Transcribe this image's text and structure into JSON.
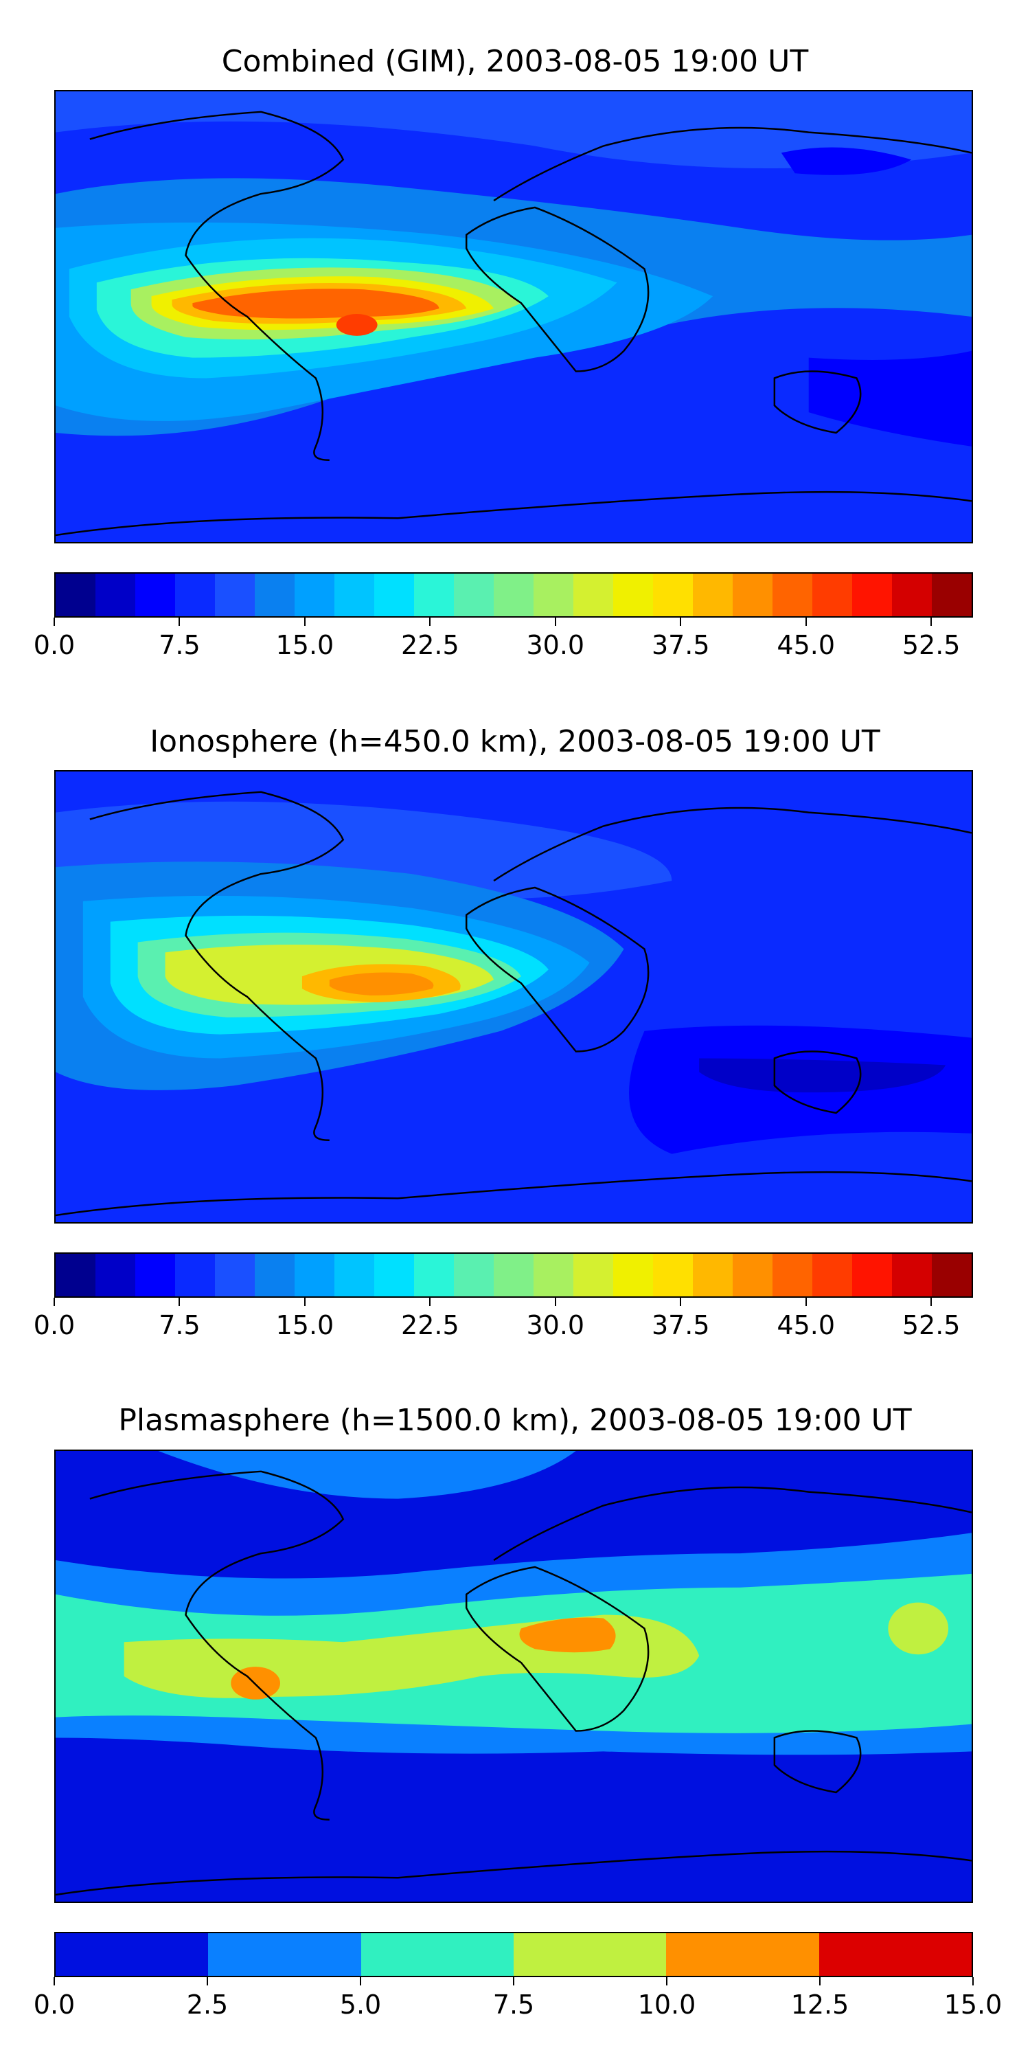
{
  "panels": [
    {
      "title": "Combined (GIM), 2003-08-05 19:00 UT",
      "colorbar": {
        "tick_labels": [
          "0.0",
          "7.5",
          "15.0",
          "22.5",
          "30.0",
          "37.5",
          "45.0",
          "52.5"
        ],
        "tick_values": [
          0,
          7.5,
          15,
          22.5,
          30,
          37.5,
          45,
          52.5
        ],
        "range": [
          0,
          55
        ],
        "levels": [
          "#00008f",
          "#0000c8",
          "#0000ff",
          "#0a2aff",
          "#1a50ff",
          "#0a80f0",
          "#00a0ff",
          "#00c4ff",
          "#00e0ff",
          "#2af5d8",
          "#5af0b0",
          "#80f088",
          "#a8f060",
          "#d4f030",
          "#f0f000",
          "#ffe000",
          "#ffb800",
          "#ff9000",
          "#ff6400",
          "#ff3c00",
          "#ff1400",
          "#d40000",
          "#9a0000"
        ]
      }
    },
    {
      "title": "Ionosphere  (h=450.0 km), 2003-08-05 19:00 UT",
      "colorbar": {
        "tick_labels": [
          "0.0",
          "7.5",
          "15.0",
          "22.5",
          "30.0",
          "37.5",
          "45.0",
          "52.5"
        ],
        "tick_values": [
          0,
          7.5,
          15,
          22.5,
          30,
          37.5,
          45,
          52.5
        ],
        "range": [
          0,
          55
        ],
        "levels": [
          "#00008f",
          "#0000c8",
          "#0000ff",
          "#0a2aff",
          "#1a50ff",
          "#0a80f0",
          "#00a0ff",
          "#00c4ff",
          "#00e0ff",
          "#2af5d8",
          "#5af0b0",
          "#80f088",
          "#a8f060",
          "#d4f030",
          "#f0f000",
          "#ffe000",
          "#ffb800",
          "#ff9000",
          "#ff6400",
          "#ff3c00",
          "#ff1400",
          "#d40000",
          "#9a0000"
        ]
      }
    },
    {
      "title": "Plasmasphere (h=1500.0 km), 2003-08-05 19:00 UT",
      "colorbar": {
        "tick_labels": [
          "0.0",
          "2.5",
          "5.0",
          "7.5",
          "10.0",
          "12.5",
          "15.0"
        ],
        "tick_values": [
          0,
          2.5,
          5,
          7.5,
          10,
          12.5,
          15
        ],
        "range": [
          0,
          15
        ],
        "levels": [
          "#0010e0",
          "#0a80ff",
          "#30f0c0",
          "#c0f040",
          "#ff9000",
          "#dc0000"
        ]
      }
    }
  ]
}
